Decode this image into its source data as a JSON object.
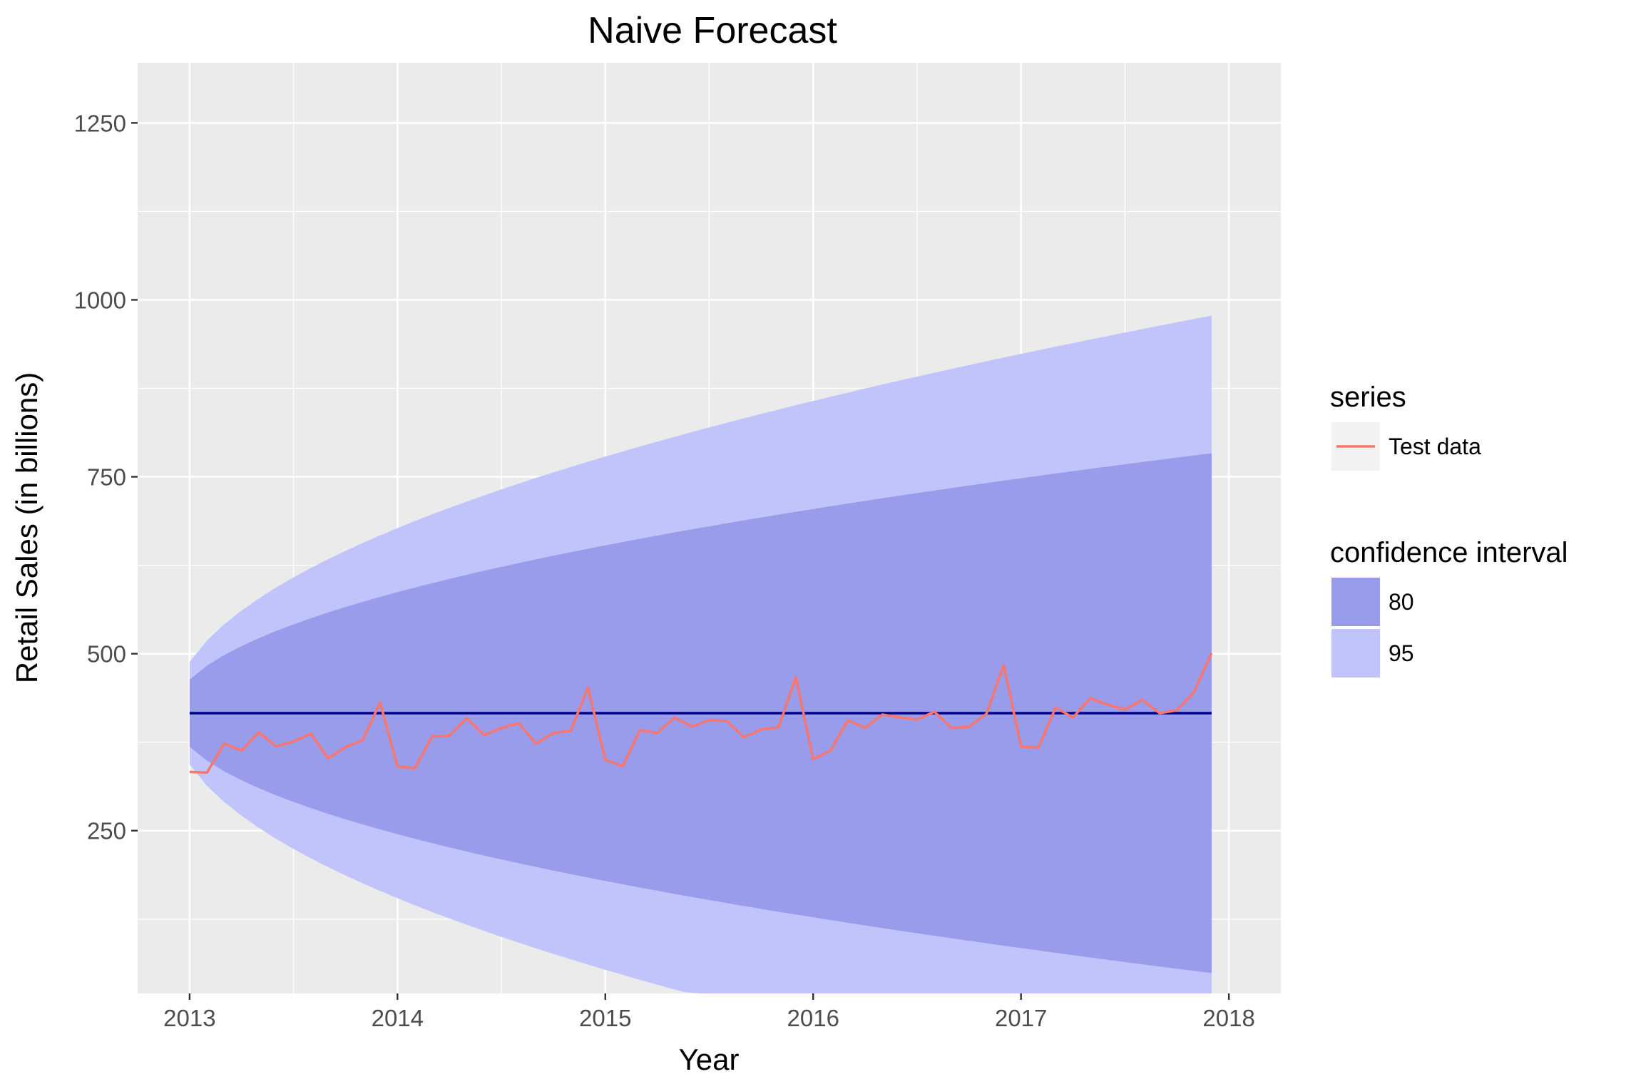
{
  "chart_data": {
    "type": "line",
    "title": "Naive Forecast",
    "xlabel": "Year",
    "ylabel": "Retail Sales (in billions)",
    "xlim": [
      2012.75,
      2018.25
    ],
    "ylim": [
      20,
      1335
    ],
    "x_ticks": [
      2013,
      2014,
      2015,
      2016,
      2017,
      2018
    ],
    "x_tick_labels": [
      "2013",
      "2014",
      "2015",
      "2016",
      "2017",
      "2018"
    ],
    "y_ticks": [
      250,
      500,
      750,
      1000,
      1250
    ],
    "y_tick_labels": [
      "250",
      "500",
      "750",
      "1000",
      "1250"
    ],
    "grid": true,
    "forecast": {
      "name": "Point forecast",
      "color": "#00008b",
      "value": 416,
      "x_start": 2013.0,
      "x_end": 2017.917
    },
    "intervals": [
      {
        "level": "95",
        "color": "#c0c4fb",
        "z": 1.96
      },
      {
        "level": "80",
        "color": "#999ceb",
        "z": 1.2816
      }
    ],
    "interval_sigma": 37,
    "interval_start": 2013.0,
    "interval_end": 2017.917,
    "series": [
      {
        "name": "Test data",
        "color": "#f8766d",
        "x_start": 2013.0,
        "x_step": 0.0833333,
        "values": [
          333,
          332,
          373,
          363,
          389,
          369,
          376,
          387,
          352,
          368,
          378,
          431,
          341,
          338,
          383,
          384,
          409,
          385,
          395,
          402,
          373,
          388,
          391,
          452,
          350,
          341,
          392,
          388,
          410,
          397,
          406,
          405,
          382,
          393,
          396,
          467,
          351,
          363,
          406,
          395,
          414,
          410,
          407,
          418,
          395,
          397,
          415,
          484,
          369,
          367,
          424,
          410,
          437,
          428,
          421,
          435,
          416,
          420,
          446,
          501
        ]
      }
    ],
    "legend": {
      "position": "right",
      "series_title": "series",
      "series_items": [
        {
          "label": "Test data",
          "color": "#f8766d"
        }
      ],
      "ci_title": "confidence interval",
      "ci_items": [
        {
          "label": "80",
          "color": "#999ceb"
        },
        {
          "label": "95",
          "color": "#c0c4fb"
        }
      ]
    }
  }
}
